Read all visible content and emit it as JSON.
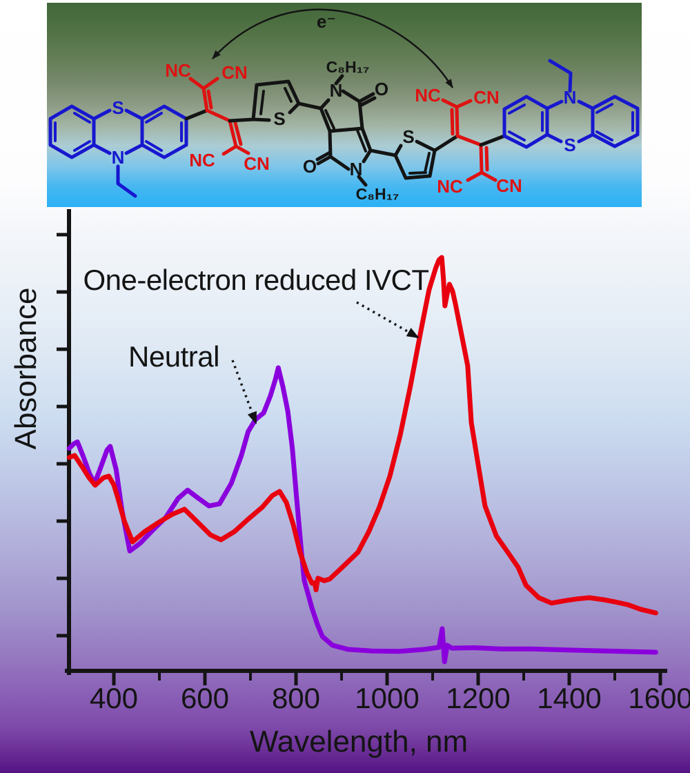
{
  "molecule": {
    "electron_label": "e⁻",
    "phenothiazine_left": {
      "s": "S",
      "n": "N"
    },
    "tcbd_left": {
      "nc_top": "NC",
      "cn_top": "CN",
      "nc_bottom": "NC",
      "cn_bottom": "CN"
    },
    "thiophene_left": {
      "s": "S"
    },
    "dpp_core": {
      "octyl_top": "C₈H₁₇",
      "n_top": "N",
      "o_top": "O",
      "o_bottom": "O",
      "n_bottom": "N",
      "octyl_bottom": "C₈H₁₇"
    },
    "thiophene_right": {
      "s": "S"
    },
    "tcbd_right": {
      "nc_top": "NC",
      "cn_top": "CN",
      "nc_bottom": "NC",
      "cn_bottom": "CN"
    },
    "phenothiazine_right": {
      "n": "N",
      "s": "S"
    },
    "colors": {
      "phenothiazine": "#1717cf",
      "tcbd": "#de1212",
      "backbone": "#141414"
    }
  },
  "chart_data": {
    "type": "line",
    "title": "",
    "xlabel": "Wavelength, nm",
    "ylabel": "Absorbance",
    "x_ticks": [
      400,
      600,
      800,
      1000,
      1200,
      1400,
      1600
    ],
    "x_minor_ticks": [
      500,
      700,
      900,
      1100,
      1300,
      1500
    ],
    "xlim": [
      300,
      1610
    ],
    "ylim": [
      0,
      1.12
    ],
    "y_tick_labels_shown": false,
    "grid": false,
    "legend_position": "none (inline text annotations with dashed arrows)",
    "annotations": [
      {
        "text": "One-electron reduced IVCT",
        "series": "One-electron reduced IVCT",
        "arrow_points_to_nm": 1065
      },
      {
        "text": "Neutral",
        "series": "Neutral",
        "arrow_points_to_nm": 712
      }
    ],
    "series": [
      {
        "name": "Neutral",
        "color": "#8a00dd",
        "points": [
          [
            302,
            0.538
          ],
          [
            312,
            0.549
          ],
          [
            320,
            0.554
          ],
          [
            332,
            0.521
          ],
          [
            347,
            0.476
          ],
          [
            358,
            0.454
          ],
          [
            371,
            0.492
          ],
          [
            385,
            0.534
          ],
          [
            392,
            0.543
          ],
          [
            405,
            0.487
          ],
          [
            418,
            0.387
          ],
          [
            435,
            0.29
          ],
          [
            458,
            0.309
          ],
          [
            486,
            0.341
          ],
          [
            514,
            0.371
          ],
          [
            541,
            0.417
          ],
          [
            562,
            0.437
          ],
          [
            586,
            0.417
          ],
          [
            609,
            0.399
          ],
          [
            632,
            0.404
          ],
          [
            658,
            0.454
          ],
          [
            680,
            0.521
          ],
          [
            695,
            0.579
          ],
          [
            711,
            0.608
          ],
          [
            729,
            0.624
          ],
          [
            744,
            0.666
          ],
          [
            755,
            0.706
          ],
          [
            761,
            0.733
          ],
          [
            771,
            0.688
          ],
          [
            782,
            0.628
          ],
          [
            792,
            0.538
          ],
          [
            801,
            0.421
          ],
          [
            812,
            0.287
          ],
          [
            818,
            0.219
          ],
          [
            835,
            0.152
          ],
          [
            847,
            0.112
          ],
          [
            858,
            0.083
          ],
          [
            880,
            0.062
          ],
          [
            914,
            0.052
          ],
          [
            968,
            0.048
          ],
          [
            1026,
            0.047
          ],
          [
            1082,
            0.052
          ],
          [
            1114,
            0.057
          ],
          [
            1121,
            0.102
          ],
          [
            1126,
            0.022
          ],
          [
            1132,
            0.062
          ],
          [
            1142,
            0.055
          ],
          [
            1192,
            0.056
          ],
          [
            1248,
            0.053
          ],
          [
            1317,
            0.053
          ],
          [
            1408,
            0.05
          ],
          [
            1514,
            0.047
          ],
          [
            1590,
            0.045
          ]
        ]
      },
      {
        "name": "One-electron reduced IVCT",
        "color": "#e8000f",
        "points": [
          [
            302,
            0.516
          ],
          [
            314,
            0.521
          ],
          [
            332,
            0.491
          ],
          [
            345,
            0.468
          ],
          [
            359,
            0.449
          ],
          [
            377,
            0.467
          ],
          [
            389,
            0.471
          ],
          [
            400,
            0.45
          ],
          [
            408,
            0.421
          ],
          [
            423,
            0.362
          ],
          [
            441,
            0.312
          ],
          [
            468,
            0.337
          ],
          [
            498,
            0.359
          ],
          [
            529,
            0.379
          ],
          [
            555,
            0.391
          ],
          [
            582,
            0.362
          ],
          [
            612,
            0.329
          ],
          [
            635,
            0.317
          ],
          [
            665,
            0.337
          ],
          [
            695,
            0.367
          ],
          [
            726,
            0.396
          ],
          [
            748,
            0.424
          ],
          [
            764,
            0.434
          ],
          [
            779,
            0.407
          ],
          [
            794,
            0.354
          ],
          [
            809,
            0.287
          ],
          [
            824,
            0.237
          ],
          [
            835,
            0.212
          ],
          [
            841,
            0.213
          ],
          [
            844,
            0.196
          ],
          [
            848,
            0.224
          ],
          [
            862,
            0.218
          ],
          [
            874,
            0.222
          ],
          [
            901,
            0.25
          ],
          [
            936,
            0.287
          ],
          [
            960,
            0.337
          ],
          [
            983,
            0.396
          ],
          [
            1006,
            0.471
          ],
          [
            1029,
            0.571
          ],
          [
            1051,
            0.688
          ],
          [
            1074,
            0.821
          ],
          [
            1092,
            0.921
          ],
          [
            1107,
            0.975
          ],
          [
            1114,
            0.994
          ],
          [
            1120,
            1.0
          ],
          [
            1124,
            0.945
          ],
          [
            1127,
            0.883
          ],
          [
            1132,
            0.912
          ],
          [
            1137,
            0.935
          ],
          [
            1144,
            0.918
          ],
          [
            1150,
            0.888
          ],
          [
            1165,
            0.805
          ],
          [
            1177,
            0.738
          ],
          [
            1185,
            0.6
          ],
          [
            1200,
            0.499
          ],
          [
            1215,
            0.399
          ],
          [
            1240,
            0.326
          ],
          [
            1265,
            0.287
          ],
          [
            1288,
            0.25
          ],
          [
            1305,
            0.207
          ],
          [
            1333,
            0.177
          ],
          [
            1361,
            0.164
          ],
          [
            1392,
            0.17
          ],
          [
            1417,
            0.174
          ],
          [
            1444,
            0.177
          ],
          [
            1476,
            0.172
          ],
          [
            1500,
            0.167
          ],
          [
            1529,
            0.16
          ],
          [
            1556,
            0.149
          ],
          [
            1590,
            0.14
          ]
        ]
      }
    ]
  },
  "background": {
    "panel_gradient_top": "#42673a",
    "panel_gradient_bottom": "#2bb1f4",
    "page_gradient_top": "#ffffff",
    "page_gradient_bottom": "#541384"
  }
}
